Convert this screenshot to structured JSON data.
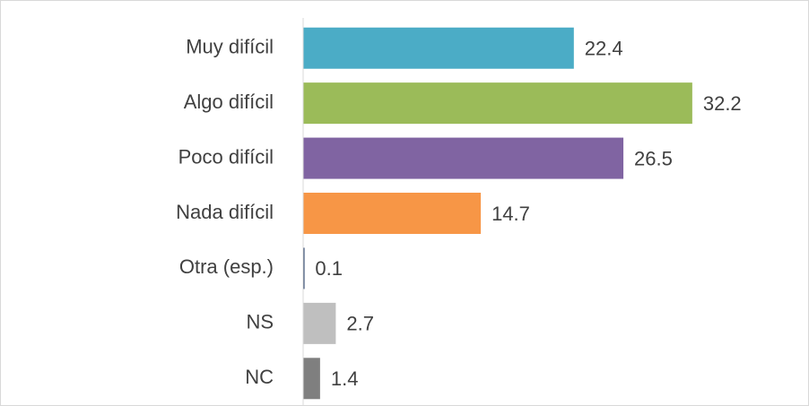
{
  "chart_data": {
    "type": "hbar",
    "categories": [
      "Muy difícil",
      "Algo difícil",
      "Poco difícil",
      "Nada difícil",
      "Otra (esp.)",
      "NS",
      "NC"
    ],
    "values": [
      22.4,
      32.2,
      26.5,
      14.7,
      0.1,
      2.7,
      1.4
    ],
    "colors": [
      "#4bacc6",
      "#9bbb59",
      "#8064a2",
      "#f79646",
      "#1f3864",
      "#bfbfbf",
      "#7f7f7f"
    ],
    "xlim": [
      0,
      38
    ]
  }
}
